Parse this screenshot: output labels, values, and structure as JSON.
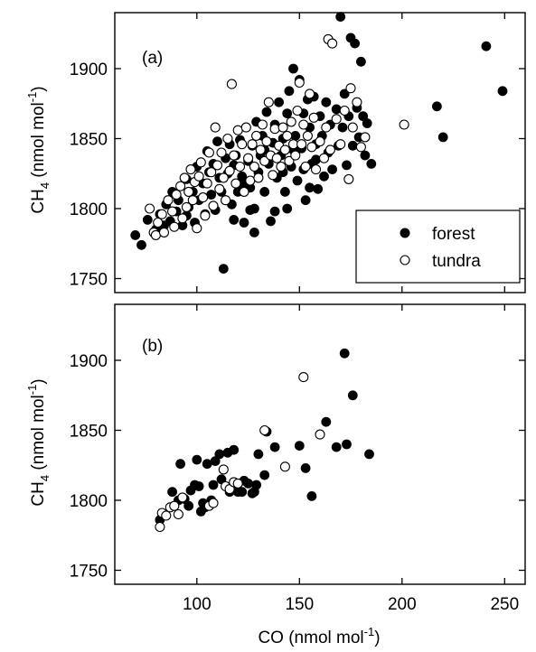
{
  "chart_data": [
    {
      "type": "scatter",
      "panel_label": "(a)",
      "xlim": [
        60,
        260
      ],
      "ylim": [
        1740,
        1940
      ],
      "yticks": [
        1750,
        1800,
        1850,
        1900
      ],
      "y_title_main": "CH",
      "y_title_sub": "4",
      "y_title_unit": " (nmol mol",
      "y_title_sup": "-1",
      "y_title_close": ")",
      "legend": {
        "placement": "lower-right",
        "entries": [
          "forest",
          "tundra"
        ]
      },
      "series": [
        {
          "name": "forest",
          "marker": "filled-circle",
          "points": [
            [
              70,
              1781
            ],
            [
              73,
              1774
            ],
            [
              76,
              1792
            ],
            [
              80,
              1785
            ],
            [
              82,
              1796
            ],
            [
              85,
              1803
            ],
            [
              87,
              1791
            ],
            [
              88,
              1812
            ],
            [
              90,
              1798
            ],
            [
              91,
              1806
            ],
            [
              93,
              1788
            ],
            [
              95,
              1821
            ],
            [
              96,
              1801
            ],
            [
              98,
              1812
            ],
            [
              99,
              1790
            ],
            [
              100,
              1830
            ],
            [
              101,
              1806
            ],
            [
              103,
              1818
            ],
            [
              104,
              1796
            ],
            [
              105,
              1841
            ],
            [
              106,
              1826
            ],
            [
              107,
              1810
            ],
            [
              108,
              1832
            ],
            [
              109,
              1799
            ],
            [
              110,
              1848
            ],
            [
              111,
              1822
            ],
            [
              112,
              1812
            ],
            [
              113,
              1757
            ],
            [
              114,
              1836
            ],
            [
              115,
              1825
            ],
            [
              116,
              1846
            ],
            [
              117,
              1803
            ],
            [
              118,
              1831
            ],
            [
              119,
              1838
            ],
            [
              120,
              1812
            ],
            [
              121,
              1849
            ],
            [
              122,
              1823
            ],
            [
              123,
              1790
            ],
            [
              124,
              1858
            ],
            [
              125,
              1834
            ],
            [
              126,
              1815
            ],
            [
              127,
              1845
            ],
            [
              128,
              1800
            ],
            [
              129,
              1862
            ],
            [
              130,
              1826
            ],
            [
              131,
              1838
            ],
            [
              132,
              1852
            ],
            [
              133,
              1812
            ],
            [
              134,
              1869
            ],
            [
              135,
              1832
            ],
            [
              136,
              1791
            ],
            [
              137,
              1847
            ],
            [
              138,
              1860
            ],
            [
              139,
              1822
            ],
            [
              140,
              1876
            ],
            [
              141,
              1838
            ],
            [
              142,
              1850
            ],
            [
              143,
              1812
            ],
            [
              144,
              1868
            ],
            [
              145,
              1884
            ],
            [
              146,
              1830
            ],
            [
              147,
              1900
            ],
            [
              148,
              1852
            ],
            [
              149,
              1820
            ],
            [
              150,
              1892
            ],
            [
              151,
              1843
            ],
            [
              152,
              1868
            ],
            [
              153,
              1806
            ],
            [
              154,
              1878
            ],
            [
              155,
              1858
            ],
            [
              156,
              1832
            ],
            [
              157,
              1880
            ],
            [
              158,
              1846
            ],
            [
              159,
              1814
            ],
            [
              160,
              1866
            ],
            [
              161,
              1852
            ],
            [
              162,
              1823
            ],
            [
              163,
              1876
            ],
            [
              164,
              1840
            ],
            [
              165,
              1860
            ],
            [
              166,
              1828
            ],
            [
              168,
              1871
            ],
            [
              169,
              1845
            ],
            [
              170,
              1937
            ],
            [
              171,
              1858
            ],
            [
              172,
              1882
            ],
            [
              173,
              1831
            ],
            [
              174,
              1866
            ],
            [
              175,
              1922
            ],
            [
              176,
              1845
            ],
            [
              177,
              1918
            ],
            [
              178,
              1872
            ],
            [
              179,
              1851
            ],
            [
              180,
              1905
            ],
            [
              181,
              1866
            ],
            [
              182,
              1838
            ],
            [
              183,
              1861
            ],
            [
              185,
              1832
            ],
            [
              128,
              1783
            ],
            [
              118,
              1792
            ],
            [
              122,
              1818
            ],
            [
              133,
              1842
            ],
            [
              138,
              1798
            ],
            [
              142,
              1826
            ],
            [
              147,
              1842
            ],
            [
              152,
              1828
            ],
            [
              155,
              1815
            ],
            [
              158,
              1835
            ],
            [
              144,
              1800
            ],
            [
              126,
              1799
            ],
            [
              114,
              1806
            ],
            [
              95,
              1795
            ],
            [
              84,
              1788
            ],
            [
              217,
              1873
            ],
            [
              220,
              1851
            ],
            [
              241,
              1916
            ],
            [
              249,
              1884
            ]
          ]
        },
        {
          "name": "tundra",
          "marker": "open-circle",
          "points": [
            [
              77,
              1800
            ],
            [
              79,
              1783
            ],
            [
              80,
              1781
            ],
            [
              81,
              1790
            ],
            [
              83,
              1796
            ],
            [
              84,
              1783
            ],
            [
              86,
              1806
            ],
            [
              88,
              1798
            ],
            [
              89,
              1787
            ],
            [
              90,
              1810
            ],
            [
              92,
              1816
            ],
            [
              93,
              1793
            ],
            [
              94,
              1822
            ],
            [
              95,
              1801
            ],
            [
              96,
              1812
            ],
            [
              97,
              1828
            ],
            [
              98,
              1806
            ],
            [
              99,
              1819
            ],
            [
              100,
              1786
            ],
            [
              101,
              1823
            ],
            [
              102,
              1833
            ],
            [
              103,
              1808
            ],
            [
              104,
              1795
            ],
            [
              105,
              1818
            ],
            [
              106,
              1840
            ],
            [
              107,
              1826
            ],
            [
              108,
              1802
            ],
            [
              109,
              1858
            ],
            [
              110,
              1831
            ],
            [
              111,
              1814
            ],
            [
              112,
              1840
            ],
            [
              113,
              1822
            ],
            [
              114,
              1806
            ],
            [
              115,
              1850
            ],
            [
              116,
              1827
            ],
            [
              117,
              1889
            ],
            [
              118,
              1838
            ],
            [
              119,
              1818
            ],
            [
              120,
              1856
            ],
            [
              121,
              1830
            ],
            [
              122,
              1846
            ],
            [
              123,
              1812
            ],
            [
              124,
              1858
            ],
            [
              125,
              1836
            ],
            [
              126,
              1820
            ],
            [
              127,
              1846
            ],
            [
              128,
              1830
            ],
            [
              129,
              1852
            ],
            [
              130,
              1822
            ],
            [
              131,
              1842
            ],
            [
              132,
              1860
            ],
            [
              133,
              1834
            ],
            [
              134,
              1848
            ],
            [
              135,
              1876
            ],
            [
              136,
              1838
            ],
            [
              137,
              1824
            ],
            [
              138,
              1857
            ],
            [
              139,
              1836
            ],
            [
              140,
              1845
            ],
            [
              141,
              1830
            ],
            [
              142,
              1858
            ],
            [
              143,
              1842
            ],
            [
              144,
              1852
            ],
            [
              145,
              1834
            ],
            [
              146,
              1862
            ],
            [
              147,
              1846
            ],
            [
              148,
              1838
            ],
            [
              149,
              1870
            ],
            [
              150,
              1890
            ],
            [
              151,
              1846
            ],
            [
              152,
              1860
            ],
            [
              153,
              1830
            ],
            [
              154,
              1852
            ],
            [
              155,
              1882
            ],
            [
              156,
              1844
            ],
            [
              157,
              1865
            ],
            [
              158,
              1828
            ],
            [
              160,
              1848
            ],
            [
              162,
              1836
            ],
            [
              163,
              1858
            ],
            [
              164,
              1921
            ],
            [
              165,
              1842
            ],
            [
              166,
              1918
            ],
            [
              168,
              1864
            ],
            [
              170,
              1846
            ],
            [
              172,
              1870
            ],
            [
              174,
              1821
            ],
            [
              175,
              1886
            ],
            [
              176,
              1858
            ],
            [
              178,
              1876
            ],
            [
              180,
              1844
            ],
            [
              182,
              1851
            ],
            [
              201,
              1860
            ]
          ]
        }
      ]
    },
    {
      "type": "scatter",
      "panel_label": "(b)",
      "xlim": [
        60,
        260
      ],
      "ylim": [
        1740,
        1940
      ],
      "xticks": [
        100,
        150,
        200,
        250
      ],
      "yticks": [
        1750,
        1800,
        1850,
        1900
      ],
      "xlabel_main": "CO (nmol mol",
      "xlabel_sup": "-1",
      "xlabel_close": ")",
      "y_title_main": "CH",
      "y_title_sub": "4",
      "y_title_unit": " (nmol mol",
      "y_title_sup": "-1",
      "y_title_close": ")",
      "series": [
        {
          "name": "forest",
          "marker": "filled-circle",
          "points": [
            [
              82,
              1786
            ],
            [
              88,
              1806
            ],
            [
              91,
              1800
            ],
            [
              92,
              1826
            ],
            [
              94,
              1801
            ],
            [
              96,
              1796
            ],
            [
              97,
              1807
            ],
            [
              99,
              1811
            ],
            [
              100,
              1829
            ],
            [
              101,
              1810
            ],
            [
              102,
              1792
            ],
            [
              103,
              1798
            ],
            [
              104,
              1795
            ],
            [
              105,
              1826
            ],
            [
              107,
              1800
            ],
            [
              108,
              1811
            ],
            [
              109,
              1828
            ],
            [
              111,
              1833
            ],
            [
              112,
              1815
            ],
            [
              115,
              1834
            ],
            [
              116,
              1806
            ],
            [
              118,
              1836
            ],
            [
              119,
              1812
            ],
            [
              120,
              1806
            ],
            [
              122,
              1806
            ],
            [
              123,
              1814
            ],
            [
              125,
              1812
            ],
            [
              127,
              1805
            ],
            [
              128,
              1806
            ],
            [
              129,
              1811
            ],
            [
              130,
              1833
            ],
            [
              133,
              1818
            ],
            [
              134,
              1849
            ],
            [
              138,
              1838
            ],
            [
              150,
              1839
            ],
            [
              153,
              1823
            ],
            [
              156,
              1803
            ],
            [
              163,
              1856
            ],
            [
              168,
              1838
            ],
            [
              172,
              1905
            ],
            [
              173,
              1840
            ],
            [
              176,
              1875
            ],
            [
              184,
              1833
            ]
          ]
        },
        {
          "name": "tundra",
          "marker": "open-circle",
          "points": [
            [
              82,
              1781
            ],
            [
              83,
              1791
            ],
            [
              85,
              1789
            ],
            [
              87,
              1795
            ],
            [
              89,
              1796
            ],
            [
              91,
              1790
            ],
            [
              93,
              1802
            ],
            [
              106,
              1796
            ],
            [
              108,
              1798
            ],
            [
              113,
              1822
            ],
            [
              114,
              1810
            ],
            [
              116,
              1808
            ],
            [
              118,
              1813
            ],
            [
              120,
              1812
            ],
            [
              133,
              1850
            ],
            [
              143,
              1824
            ],
            [
              152,
              1888
            ],
            [
              160,
              1847
            ]
          ]
        }
      ]
    }
  ]
}
